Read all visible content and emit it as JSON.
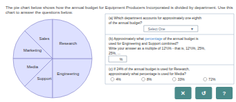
{
  "chart_data": {
    "type": "pie",
    "title": "The pie chart below shows how the annual budget for Equipment Producers Incorporated is divided by department. Use this chart to answer the questions below.",
    "categories": [
      "Sales",
      "Marketing",
      "Media",
      "Support",
      "Engineering",
      "Research"
    ],
    "values": [
      12.5,
      12.5,
      12.5,
      12.5,
      25.0,
      25.0
    ],
    "color": "#dde0ff",
    "annotations": [
      "(a) Which department accounts for approximately one eighth",
      "of the annual budget?",
      "Select One",
      "▾",
      "(b) Approximately what ",
      {
        "text": "percentage",
        "color": "#4488cc"
      },
      " of the annual budget is",
      "used for Engineering and Support combined?",
      "Write your answer as a multiple of 12½% - that is, 12½%, 25%,",
      "25%, ...",
      "%",
      "(c) If 24% of the annual budget is used for Research,",
      "approximately what percentage is used for Media?",
      "4%",
      "8%",
      "33%",
      "72%",
      "✕",
      "↺",
      "?"
    ]
  }
}
